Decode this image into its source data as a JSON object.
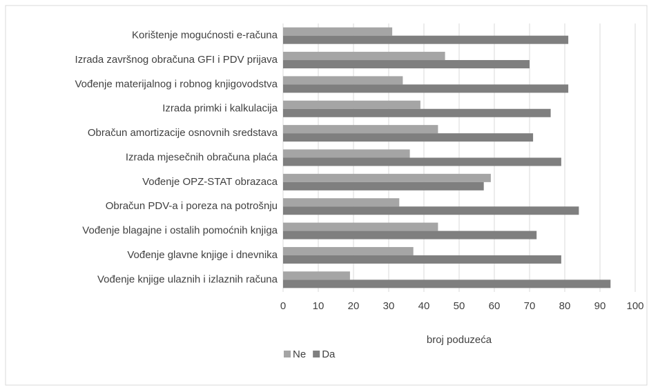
{
  "chart_data": {
    "type": "bar",
    "orientation": "horizontal",
    "x_label": "broj poduzeća",
    "categories": [
      "Korištenje mogućnosti e-računa",
      "Izrada završnog obračuna GFI i PDV prijava",
      "Vođenje materijalnog i robnog knjigovodstva",
      "Izrada primki i kalkulacija",
      "Obračun amortizacije osnovnih sredstava",
      "Izrada mjesečnih obračuna plaća",
      "Vođenje OPZ-STAT obrazaca",
      "Obračun PDV-a i poreza na potrošnju",
      "Vođenje blagajne i ostalih pomoćnih knjiga",
      "Vođenje glavne knjige i dnevnika",
      "Vođenje knjige ulaznih i izlaznih računa"
    ],
    "series": [
      {
        "name": "Ne",
        "color": "#a5a5a5",
        "values": [
          31,
          46,
          34,
          39,
          44,
          36,
          59,
          33,
          44,
          37,
          19
        ]
      },
      {
        "name": "Da",
        "color": "#7f7f7f",
        "values": [
          81,
          70,
          81,
          76,
          71,
          79,
          57,
          84,
          72,
          79,
          93
        ]
      }
    ],
    "xlim": [
      0,
      100
    ],
    "xticks": [
      0,
      10,
      20,
      30,
      40,
      50,
      60,
      70,
      80,
      90,
      100
    ],
    "grid": true,
    "legend": "bottom"
  }
}
